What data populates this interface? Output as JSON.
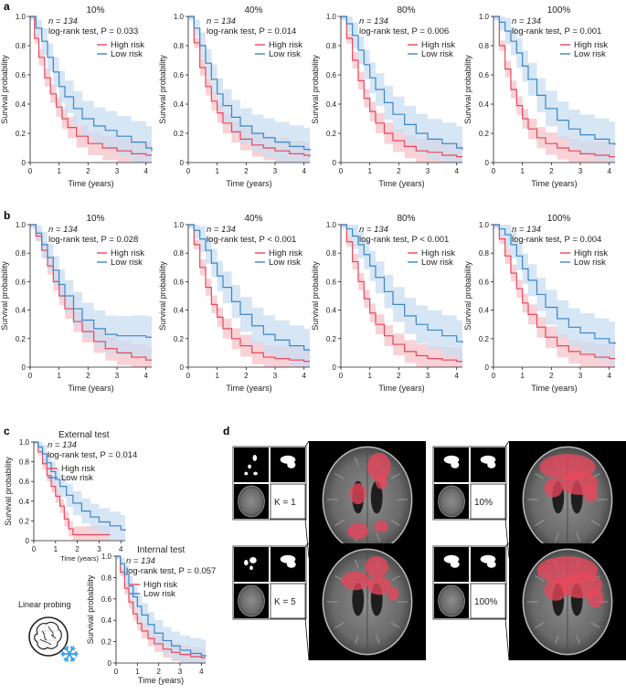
{
  "panels": {
    "a": "a",
    "b": "b",
    "c": "c",
    "d": "d"
  },
  "colors": {
    "high": "#e8475b",
    "high_band": "#f5c3ca",
    "low": "#3a86c8",
    "low_band": "#c9def2",
    "snowflake": "#3aa0e8"
  },
  "legend": {
    "high": "High risk",
    "low": "Low risk"
  },
  "common": {
    "n_text": "n = 134",
    "xlabel": "Time (years)",
    "ylabel": "Survival probability"
  },
  "linear_probing": {
    "label": "Linear probing",
    "icon": "brain-icon",
    "freeze_icon": "snowflake-icon"
  },
  "mri": {
    "labels": [
      "K = 1",
      "10%",
      "K = 5",
      "100%"
    ]
  },
  "chart_data": [
    {
      "id": "a-10",
      "row": "a",
      "type": "line",
      "title": "10%",
      "annotation": "log-rank test, P = 0.033",
      "xlim": [
        0,
        4.2
      ],
      "ylim": [
        0,
        1.0
      ],
      "xticks": [
        0,
        1,
        2,
        3,
        4
      ],
      "yticks": [
        0,
        0.2,
        0.4,
        0.6,
        0.8,
        1.0
      ],
      "series": [
        {
          "name": "High risk",
          "x": [
            0,
            0.15,
            0.3,
            0.5,
            0.7,
            0.9,
            1.1,
            1.3,
            1.6,
            2.0,
            2.5,
            3.0,
            3.5,
            4.0,
            4.2
          ],
          "y": [
            1.0,
            0.85,
            0.72,
            0.58,
            0.47,
            0.38,
            0.3,
            0.24,
            0.18,
            0.13,
            0.1,
            0.08,
            0.06,
            0.05,
            0.05
          ]
        },
        {
          "name": "Low risk",
          "x": [
            0,
            0.2,
            0.4,
            0.6,
            0.8,
            1.0,
            1.2,
            1.5,
            1.8,
            2.2,
            2.6,
            3.0,
            3.5,
            4.0,
            4.2
          ],
          "y": [
            1.0,
            0.92,
            0.83,
            0.72,
            0.62,
            0.52,
            0.45,
            0.37,
            0.3,
            0.25,
            0.22,
            0.18,
            0.14,
            0.1,
            0.08
          ]
        }
      ]
    },
    {
      "id": "a-40",
      "row": "a",
      "type": "line",
      "title": "40%",
      "annotation": "log-rank test, P = 0.014",
      "xlim": [
        0,
        4.2
      ],
      "ylim": [
        0,
        1.0
      ],
      "xticks": [
        0,
        1,
        2,
        3,
        4
      ],
      "yticks": [
        0,
        0.2,
        0.4,
        0.6,
        0.8,
        1.0
      ],
      "series": [
        {
          "name": "High risk",
          "x": [
            0,
            0.2,
            0.4,
            0.6,
            0.8,
            1.0,
            1.2,
            1.5,
            1.8,
            2.2,
            2.6,
            3.0,
            3.5,
            4.0,
            4.2
          ],
          "y": [
            1.0,
            0.82,
            0.65,
            0.52,
            0.42,
            0.34,
            0.27,
            0.21,
            0.16,
            0.12,
            0.1,
            0.08,
            0.06,
            0.05,
            0.04
          ]
        },
        {
          "name": "Low risk",
          "x": [
            0,
            0.2,
            0.4,
            0.6,
            0.8,
            1.0,
            1.2,
            1.5,
            1.8,
            2.2,
            2.6,
            3.0,
            3.5,
            4.0,
            4.2
          ],
          "y": [
            1.0,
            0.92,
            0.8,
            0.68,
            0.57,
            0.47,
            0.39,
            0.31,
            0.25,
            0.2,
            0.17,
            0.14,
            0.11,
            0.09,
            0.08
          ]
        }
      ]
    },
    {
      "id": "a-80",
      "row": "a",
      "type": "line",
      "title": "80%",
      "annotation": "log-rank test, P = 0.006",
      "xlim": [
        0,
        4.2
      ],
      "ylim": [
        0,
        1.0
      ],
      "xticks": [
        0,
        1,
        2,
        3,
        4
      ],
      "yticks": [
        0,
        0.2,
        0.4,
        0.6,
        0.8,
        1.0
      ],
      "series": [
        {
          "name": "High risk",
          "x": [
            0,
            0.2,
            0.4,
            0.6,
            0.8,
            1.0,
            1.2,
            1.5,
            1.8,
            2.2,
            2.6,
            3.0,
            3.5,
            4.0,
            4.2
          ],
          "y": [
            1.0,
            0.85,
            0.7,
            0.56,
            0.44,
            0.35,
            0.27,
            0.2,
            0.15,
            0.11,
            0.08,
            0.07,
            0.05,
            0.04,
            0.04
          ]
        },
        {
          "name": "Low risk",
          "x": [
            0,
            0.2,
            0.4,
            0.6,
            0.8,
            1.0,
            1.2,
            1.5,
            1.8,
            2.2,
            2.6,
            3.0,
            3.5,
            4.0,
            4.2
          ],
          "y": [
            1.0,
            0.95,
            0.87,
            0.77,
            0.67,
            0.58,
            0.5,
            0.41,
            0.33,
            0.26,
            0.2,
            0.16,
            0.13,
            0.1,
            0.09
          ]
        }
      ]
    },
    {
      "id": "a-100",
      "row": "a",
      "type": "line",
      "title": "100%",
      "annotation": "log-rank test, P = 0.001",
      "xlim": [
        0,
        4.2
      ],
      "ylim": [
        0,
        1.0
      ],
      "xticks": [
        0,
        1,
        2,
        3,
        4
      ],
      "yticks": [
        0,
        0.2,
        0.4,
        0.6,
        0.8,
        1.0
      ],
      "series": [
        {
          "name": "High risk",
          "x": [
            0,
            0.2,
            0.4,
            0.6,
            0.8,
            1.0,
            1.2,
            1.5,
            1.8,
            2.2,
            2.6,
            3.0,
            3.5,
            4.0,
            4.2
          ],
          "y": [
            1.0,
            0.8,
            0.64,
            0.5,
            0.39,
            0.3,
            0.23,
            0.17,
            0.13,
            0.1,
            0.08,
            0.06,
            0.05,
            0.04,
            0.04
          ]
        },
        {
          "name": "Low risk",
          "x": [
            0,
            0.2,
            0.4,
            0.6,
            0.8,
            1.0,
            1.2,
            1.5,
            1.8,
            2.2,
            2.6,
            3.0,
            3.5,
            4.0,
            4.2
          ],
          "y": [
            1.0,
            0.96,
            0.9,
            0.83,
            0.75,
            0.66,
            0.57,
            0.46,
            0.37,
            0.29,
            0.23,
            0.19,
            0.16,
            0.13,
            0.12
          ]
        }
      ]
    },
    {
      "id": "b-10",
      "row": "b",
      "type": "line",
      "title": "10%",
      "annotation": "log-rank test, P = 0.028",
      "xlim": [
        0,
        4.2
      ],
      "ylim": [
        0,
        1.0
      ],
      "xticks": [
        0,
        1,
        2,
        3,
        4
      ],
      "yticks": [
        0,
        0.2,
        0.4,
        0.6,
        0.8,
        1.0
      ],
      "series": [
        {
          "name": "High risk",
          "x": [
            0,
            0.2,
            0.4,
            0.6,
            0.8,
            1.0,
            1.2,
            1.5,
            1.8,
            2.2,
            2.6,
            3.0,
            3.5,
            4.0,
            4.2
          ],
          "y": [
            1.0,
            0.92,
            0.82,
            0.71,
            0.6,
            0.5,
            0.41,
            0.32,
            0.25,
            0.18,
            0.13,
            0.1,
            0.07,
            0.05,
            0.05
          ]
        },
        {
          "name": "Low risk",
          "x": [
            0,
            0.2,
            0.4,
            0.6,
            0.8,
            1.0,
            1.2,
            1.5,
            1.8,
            2.2,
            2.6,
            3.0,
            3.5,
            4.0,
            4.2
          ],
          "y": [
            1.0,
            0.94,
            0.86,
            0.77,
            0.68,
            0.58,
            0.5,
            0.41,
            0.33,
            0.27,
            0.23,
            0.22,
            0.22,
            0.21,
            0.21
          ]
        }
      ]
    },
    {
      "id": "b-40",
      "row": "b",
      "type": "line",
      "title": "40%",
      "annotation": "log-rank test, P < 0.001",
      "xlim": [
        0,
        4.2
      ],
      "ylim": [
        0,
        1.0
      ],
      "xticks": [
        0,
        1,
        2,
        3,
        4
      ],
      "yticks": [
        0,
        0.2,
        0.4,
        0.6,
        0.8,
        1.0
      ],
      "series": [
        {
          "name": "High risk",
          "x": [
            0,
            0.2,
            0.4,
            0.6,
            0.8,
            1.0,
            1.2,
            1.5,
            1.8,
            2.2,
            2.6,
            3.0,
            3.5,
            4.0,
            4.2
          ],
          "y": [
            1.0,
            0.86,
            0.7,
            0.56,
            0.44,
            0.35,
            0.27,
            0.2,
            0.15,
            0.1,
            0.07,
            0.06,
            0.05,
            0.04,
            0.04
          ]
        },
        {
          "name": "Low risk",
          "x": [
            0,
            0.2,
            0.4,
            0.6,
            0.8,
            1.0,
            1.2,
            1.5,
            1.8,
            2.2,
            2.6,
            3.0,
            3.5,
            4.0,
            4.2
          ],
          "y": [
            1.0,
            0.96,
            0.9,
            0.82,
            0.73,
            0.64,
            0.56,
            0.46,
            0.37,
            0.29,
            0.23,
            0.19,
            0.15,
            0.12,
            0.12
          ]
        }
      ]
    },
    {
      "id": "b-80",
      "row": "b",
      "type": "line",
      "title": "80%",
      "annotation": "log-rank test, P < 0.001",
      "xlim": [
        0,
        4.2
      ],
      "ylim": [
        0,
        1.0
      ],
      "xticks": [
        0,
        1,
        2,
        3,
        4
      ],
      "yticks": [
        0,
        0.2,
        0.4,
        0.6,
        0.8,
        1.0
      ],
      "series": [
        {
          "name": "High risk",
          "x": [
            0,
            0.2,
            0.4,
            0.6,
            0.8,
            1.0,
            1.2,
            1.5,
            1.8,
            2.2,
            2.6,
            3.0,
            3.5,
            4.0,
            4.2
          ],
          "y": [
            1.0,
            0.88,
            0.74,
            0.6,
            0.48,
            0.38,
            0.3,
            0.22,
            0.16,
            0.11,
            0.08,
            0.06,
            0.05,
            0.04,
            0.04
          ]
        },
        {
          "name": "Low risk",
          "x": [
            0,
            0.2,
            0.4,
            0.6,
            0.8,
            1.0,
            1.2,
            1.5,
            1.8,
            2.2,
            2.6,
            3.0,
            3.5,
            4.0,
            4.2
          ],
          "y": [
            1.0,
            0.97,
            0.92,
            0.86,
            0.79,
            0.71,
            0.63,
            0.53,
            0.44,
            0.36,
            0.3,
            0.26,
            0.22,
            0.18,
            0.17
          ]
        }
      ]
    },
    {
      "id": "b-100",
      "row": "b",
      "type": "line",
      "title": "100%",
      "annotation": "log-rank test, P = 0.004",
      "xlim": [
        0,
        4.2
      ],
      "ylim": [
        0,
        1.0
      ],
      "xticks": [
        0,
        1,
        2,
        3,
        4
      ],
      "yticks": [
        0,
        0.2,
        0.4,
        0.6,
        0.8,
        1.0
      ],
      "series": [
        {
          "name": "High risk",
          "x": [
            0,
            0.2,
            0.4,
            0.6,
            0.8,
            1.0,
            1.2,
            1.5,
            1.8,
            2.2,
            2.6,
            3.0,
            3.5,
            4.0,
            4.2
          ],
          "y": [
            1.0,
            0.9,
            0.78,
            0.66,
            0.55,
            0.45,
            0.37,
            0.28,
            0.21,
            0.15,
            0.11,
            0.09,
            0.07,
            0.06,
            0.06
          ]
        },
        {
          "name": "Low risk",
          "x": [
            0,
            0.2,
            0.4,
            0.6,
            0.8,
            1.0,
            1.2,
            1.5,
            1.8,
            2.2,
            2.6,
            3.0,
            3.5,
            4.0,
            4.2
          ],
          "y": [
            1.0,
            0.97,
            0.93,
            0.86,
            0.78,
            0.69,
            0.61,
            0.51,
            0.42,
            0.34,
            0.28,
            0.24,
            0.2,
            0.17,
            0.16
          ]
        }
      ]
    },
    {
      "id": "c-ext",
      "row": "c",
      "type": "line",
      "title": "External test",
      "annotation": "log-rank test, P = 0.014",
      "xlim": [
        0,
        4.2
      ],
      "ylim": [
        0,
        1.0
      ],
      "xticks": [
        0,
        1,
        2,
        3,
        4
      ],
      "yticks": [
        0,
        0.2,
        0.4,
        0.6,
        0.8,
        1.0
      ],
      "series": [
        {
          "name": "High risk",
          "x": [
            0,
            0.2,
            0.4,
            0.6,
            0.8,
            1.0,
            1.2,
            1.4,
            1.6,
            1.8,
            2.0,
            2.5,
            3.0,
            3.5
          ],
          "y": [
            1.0,
            0.9,
            0.78,
            0.66,
            0.55,
            0.45,
            0.35,
            0.22,
            0.12,
            0.06,
            0.06,
            0.06,
            0.06,
            0.06
          ]
        },
        {
          "name": "Low risk",
          "x": [
            0,
            0.2,
            0.4,
            0.6,
            0.8,
            1.0,
            1.2,
            1.5,
            1.8,
            2.2,
            2.6,
            3.0,
            3.5,
            4.0,
            4.2
          ],
          "y": [
            1.0,
            0.95,
            0.88,
            0.79,
            0.7,
            0.62,
            0.55,
            0.46,
            0.38,
            0.3,
            0.24,
            0.19,
            0.15,
            0.11,
            0.1
          ]
        }
      ]
    },
    {
      "id": "c-int",
      "row": "c",
      "type": "line",
      "title": "Internal test",
      "annotation": "log-rank test, P = 0.057",
      "xlim": [
        0,
        4.2
      ],
      "ylim": [
        0,
        1.0
      ],
      "xticks": [
        0,
        1,
        2,
        3,
        4
      ],
      "yticks": [
        0,
        0.2,
        0.4,
        0.6,
        0.8,
        1.0
      ],
      "series": [
        {
          "name": "High risk",
          "x": [
            0,
            0.2,
            0.4,
            0.6,
            0.8,
            1.0,
            1.2,
            1.5,
            1.8,
            2.2,
            2.6,
            3.0,
            3.5,
            4.0,
            4.2
          ],
          "y": [
            1.0,
            0.85,
            0.7,
            0.57,
            0.46,
            0.37,
            0.3,
            0.23,
            0.18,
            0.13,
            0.1,
            0.08,
            0.06,
            0.05,
            0.05
          ]
        },
        {
          "name": "Low risk",
          "x": [
            0,
            0.2,
            0.4,
            0.6,
            0.8,
            1.0,
            1.2,
            1.5,
            1.8,
            2.2,
            2.6,
            3.0,
            3.5,
            4.0,
            4.2
          ],
          "y": [
            1.0,
            0.93,
            0.83,
            0.72,
            0.62,
            0.53,
            0.45,
            0.36,
            0.28,
            0.21,
            0.16,
            0.12,
            0.09,
            0.07,
            0.06
          ]
        }
      ]
    }
  ]
}
